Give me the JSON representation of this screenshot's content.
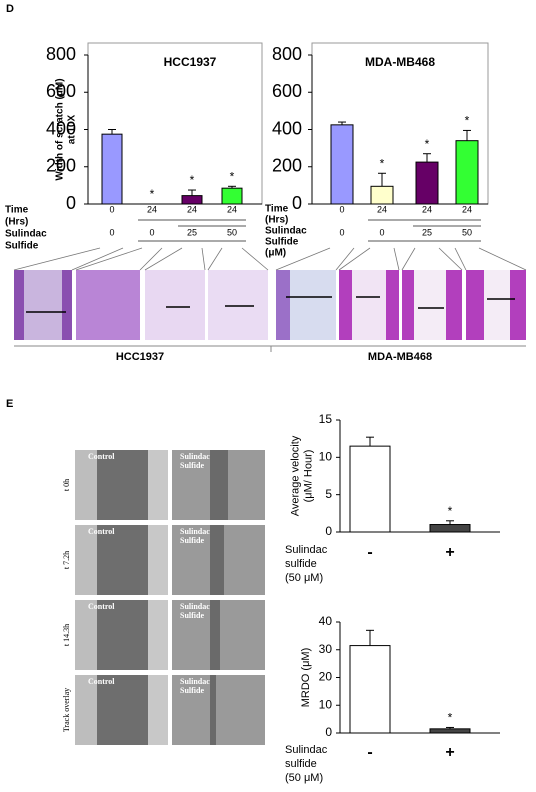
{
  "panel_d": {
    "label": "D",
    "group_labels": [
      "HCC1937",
      "MDA-MB468"
    ]
  },
  "panel_e": {
    "label": "E",
    "micrographs": [
      {
        "time": "t 0h",
        "left": "Control",
        "right": [
          "Sulindac",
          "Sulfide"
        ]
      },
      {
        "time": "t 7.2h",
        "left": "Control",
        "right": [
          "Sulindac",
          "Sulfide"
        ]
      },
      {
        "time": "t 14.3h",
        "left": "Control",
        "right": [
          "Sulindac",
          "Sulfide"
        ]
      },
      {
        "time": "Track overlay",
        "left": "Control",
        "right": [
          "Sulindac",
          "Sulfide"
        ]
      }
    ]
  },
  "chart_data": [
    {
      "type": "bar",
      "title": "HCC1937",
      "ylabel": [
        "Width of scratch (μM)",
        "at 10X"
      ],
      "row_labels": {
        "time": [
          "Time",
          "(Hrs)"
        ],
        "dose": [
          "Sulindac",
          "Sulfide"
        ]
      },
      "time": [
        0,
        24,
        24,
        24
      ],
      "dose": [
        0,
        0,
        25,
        50
      ],
      "values": [
        375,
        0,
        45,
        85
      ],
      "errors": [
        25,
        0,
        30,
        10
      ],
      "colors": [
        "#9999ff",
        "#ffffcc",
        "#660066",
        "#33ff33"
      ],
      "annotations": [
        null,
        "*",
        "*",
        "*"
      ],
      "ylim": [
        0,
        800
      ],
      "yticks": [
        0,
        200,
        400,
        600,
        800
      ]
    },
    {
      "type": "bar",
      "title": "MDA-MB468",
      "row_labels": {
        "time": [
          "Time",
          "(Hrs)"
        ],
        "dose": [
          "Sulindac",
          "Sulfide",
          "(μM)"
        ]
      },
      "time": [
        0,
        24,
        24,
        24
      ],
      "dose": [
        0,
        0,
        25,
        50
      ],
      "values": [
        425,
        95,
        225,
        340
      ],
      "errors": [
        15,
        70,
        45,
        55
      ],
      "colors": [
        "#9999ff",
        "#ffffcc",
        "#660066",
        "#33ff33"
      ],
      "annotations": [
        null,
        "*",
        "*",
        "*"
      ],
      "ylim": [
        0,
        800
      ],
      "yticks": [
        0,
        200,
        400,
        600,
        800
      ]
    },
    {
      "type": "bar",
      "ylabel": [
        "Average velocity",
        "(μM/ Hour)"
      ],
      "xlabel": [
        "Sulindac",
        "sulfide",
        "(50 μM)"
      ],
      "categories": [
        "-",
        "+"
      ],
      "values": [
        11.5,
        1.0
      ],
      "errors": [
        1.2,
        0.5
      ],
      "colors": [
        "#ffffff",
        "#444444"
      ],
      "annotations": [
        null,
        "*"
      ],
      "ylim": [
        0,
        15
      ],
      "yticks": [
        0,
        5,
        10,
        15
      ]
    },
    {
      "type": "bar",
      "ylabel": [
        "MRDO (μM)"
      ],
      "xlabel": [
        "Sulindac",
        "sulfide",
        "(50 μM)"
      ],
      "categories": [
        "-",
        "+"
      ],
      "values": [
        31.5,
        1.5
      ],
      "errors": [
        5.5,
        0.5
      ],
      "colors": [
        "#ffffff",
        "#444444"
      ],
      "annotations": [
        null,
        "*"
      ],
      "ylim": [
        0,
        40
      ],
      "yticks": [
        0,
        10,
        20,
        30,
        40
      ]
    }
  ]
}
